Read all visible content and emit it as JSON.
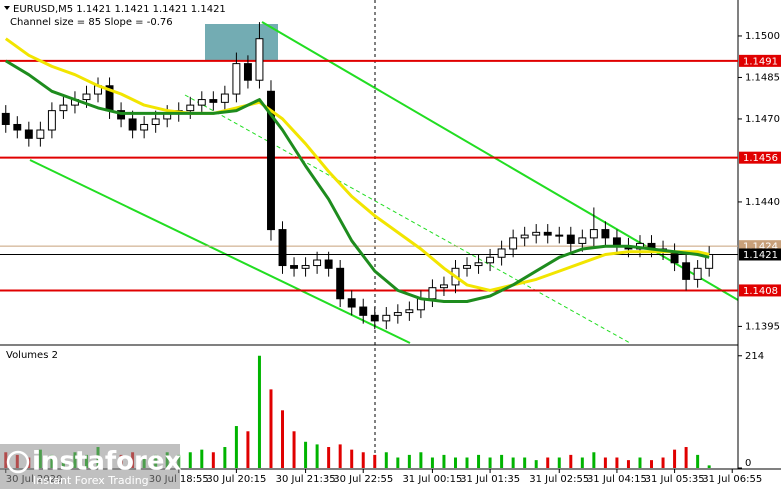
{
  "chart_data": {
    "type": "candlestick",
    "title": "EURUSD,M5  1.1421 1.1421 1.1421 1.1421",
    "subtitle": "Channel size = 85 Slope = -0.76",
    "open": [
      1.1472,
      1.1468,
      1.1466,
      1.1463,
      1.1466,
      1.1473,
      1.1475,
      1.1477,
      1.1479,
      1.1482,
      1.1473,
      1.147,
      1.1466,
      1.1468,
      1.147,
      1.1472,
      1.1473,
      1.1475,
      1.1477,
      1.1476,
      1.1479,
      1.149,
      1.1484,
      1.148,
      1.143,
      1.1417,
      1.1416,
      1.1417,
      1.1419,
      1.1416,
      1.1405,
      1.1402,
      1.1399,
      1.1397,
      1.1399,
      1.14,
      1.1401,
      1.1405,
      1.1409,
      1.141,
      1.1416,
      1.1417,
      1.1418,
      1.142,
      1.1423,
      1.1427,
      1.1428,
      1.1429,
      1.1428,
      1.1428,
      1.1425,
      1.1427,
      1.143,
      1.1427,
      1.1424,
      1.1423,
      1.1425,
      1.1423,
      1.1422,
      1.1418,
      1.1412,
      1.1416
    ],
    "high": [
      1.1475,
      1.1471,
      1.1469,
      1.1469,
      1.1476,
      1.1478,
      1.148,
      1.1482,
      1.1485,
      1.1485,
      1.1476,
      1.1473,
      1.1471,
      1.1473,
      1.1475,
      1.1476,
      1.1478,
      1.148,
      1.148,
      1.1482,
      1.1494,
      1.1493,
      1.1505,
      1.1484,
      1.1433,
      1.142,
      1.142,
      1.1422,
      1.1422,
      1.1419,
      1.1408,
      1.1405,
      1.1402,
      1.1402,
      1.1403,
      1.1404,
      1.1408,
      1.1412,
      1.1413,
      1.1419,
      1.142,
      1.1421,
      1.1423,
      1.1426,
      1.143,
      1.1431,
      1.1432,
      1.1432,
      1.1431,
      1.1431,
      1.143,
      1.1438,
      1.1433,
      1.143,
      1.1427,
      1.1428,
      1.1428,
      1.1426,
      1.1425,
      1.1421,
      1.1419,
      1.1424
    ],
    "low": [
      1.1465,
      1.1463,
      1.146,
      1.146,
      1.1463,
      1.147,
      1.1472,
      1.1474,
      1.1476,
      1.147,
      1.1467,
      1.1463,
      1.1463,
      1.1465,
      1.1467,
      1.1469,
      1.147,
      1.1472,
      1.1473,
      1.1473,
      1.1476,
      1.1481,
      1.1481,
      1.1426,
      1.1414,
      1.1413,
      1.1413,
      1.1414,
      1.1413,
      1.1402,
      1.1399,
      1.1396,
      1.1394,
      1.1394,
      1.1396,
      1.1397,
      1.1398,
      1.1402,
      1.1406,
      1.1407,
      1.1413,
      1.1414,
      1.1415,
      1.1417,
      1.142,
      1.1424,
      1.1425,
      1.1425,
      1.1425,
      1.1422,
      1.1422,
      1.1424,
      1.1424,
      1.1421,
      1.142,
      1.142,
      1.142,
      1.1419,
      1.1415,
      1.1408,
      1.1409,
      1.1413
    ],
    "close": [
      1.1468,
      1.1466,
      1.1463,
      1.1466,
      1.1473,
      1.1475,
      1.1477,
      1.1479,
      1.1482,
      1.1473,
      1.147,
      1.1466,
      1.1468,
      1.147,
      1.1472,
      1.1473,
      1.1475,
      1.1477,
      1.1476,
      1.1479,
      1.149,
      1.1484,
      1.1499,
      1.143,
      1.1417,
      1.1416,
      1.1417,
      1.1419,
      1.1416,
      1.1405,
      1.1402,
      1.1399,
      1.1397,
      1.1399,
      1.14,
      1.1401,
      1.1405,
      1.1409,
      1.141,
      1.1416,
      1.1417,
      1.1418,
      1.142,
      1.1423,
      1.1427,
      1.1428,
      1.1429,
      1.1428,
      1.1428,
      1.1425,
      1.1427,
      1.143,
      1.1427,
      1.1424,
      1.1423,
      1.1425,
      1.1423,
      1.1422,
      1.1418,
      1.1412,
      1.1416,
      1.1421
    ],
    "ylim": [
      1.1389,
      1.1513
    ],
    "yticks": [
      {
        "value": 1.15,
        "label": "1.1500"
      },
      1.1485,
      {
        "value": 1.147,
        "label": "1.1470"
      },
      {
        "value": 1.144,
        "label": "1.1440"
      },
      1.1395
    ],
    "xlim": [
      0,
      64
    ],
    "xticks": [
      {
        "value": 0,
        "label": "30 Jul 2020"
      },
      {
        "value": 15,
        "label": "30 Jul 18:55"
      },
      {
        "value": 20,
        "label": "30 Jul 20:15"
      },
      {
        "value": 26,
        "label": "30 Jul 21:35"
      },
      {
        "value": 31,
        "label": "30 Jul 22:55"
      },
      {
        "value": 37,
        "label": "31 Jul 00:15"
      },
      {
        "value": 42,
        "label": "31 Jul 01:35"
      },
      {
        "value": 48,
        "label": "31 Jul 02:55"
      },
      {
        "value": 53,
        "label": "31 Jul 04:15"
      },
      {
        "value": 58,
        "label": "31 Jul 05:35"
      },
      {
        "value": 63,
        "label": "31 Jul 06:55"
      }
    ],
    "lines": [
      {
        "color": "#f2e500",
        "x": [
          0,
          2,
          4,
          6,
          8,
          10,
          12,
          14,
          16,
          18,
          20,
          22,
          24,
          26,
          28,
          30,
          32,
          34,
          36,
          38,
          40,
          42,
          44,
          46,
          48,
          50,
          52,
          54,
          56,
          58,
          60,
          61
        ],
        "values": [
          1.1499,
          1.1493,
          1.1489,
          1.1486,
          1.1482,
          1.1479,
          1.1475,
          1.1473,
          1.1472,
          1.1472,
          1.1474,
          1.1476,
          1.147,
          1.1461,
          1.1451,
          1.1442,
          1.1435,
          1.1429,
          1.1423,
          1.1416,
          1.141,
          1.1408,
          1.141,
          1.1412,
          1.1415,
          1.1418,
          1.1421,
          1.1422,
          1.1422,
          1.1422,
          1.1422,
          1.1421
        ]
      },
      {
        "color": "#1e8c1e",
        "x": [
          0,
          2,
          4,
          6,
          8,
          10,
          12,
          14,
          16,
          18,
          20,
          22,
          24,
          26,
          28,
          30,
          32,
          34,
          36,
          38,
          40,
          42,
          44,
          46,
          48,
          50,
          52,
          54,
          56,
          58,
          60,
          61
        ],
        "values": [
          1.1491,
          1.1486,
          1.148,
          1.1477,
          1.1474,
          1.1472,
          1.1472,
          1.1472,
          1.1472,
          1.1472,
          1.1473,
          1.1477,
          1.1466,
          1.1453,
          1.1441,
          1.1426,
          1.1415,
          1.1408,
          1.1405,
          1.1404,
          1.1404,
          1.1406,
          1.141,
          1.1415,
          1.142,
          1.1423,
          1.1424,
          1.1424,
          1.1423,
          1.1422,
          1.1421,
          1.142
        ]
      }
    ],
    "levels": [
      {
        "value": 1.1491,
        "color": "#e00000"
      },
      {
        "value": 1.1456,
        "color": "#e00000"
      },
      {
        "value": 1.1408,
        "color": "#e00000"
      },
      {
        "value": 1.1424,
        "color": "#c8a07a"
      },
      {
        "value": 1.1421,
        "color": "#000000"
      }
    ],
    "volume": {
      "title": "Volumes 2",
      "values": [
        30,
        25,
        20,
        35,
        25,
        20,
        30,
        25,
        40,
        30,
        25,
        30,
        20,
        25,
        30,
        25,
        30,
        35,
        30,
        40,
        80,
        70,
        214,
        150,
        110,
        70,
        50,
        45,
        40,
        45,
        35,
        30,
        25,
        30,
        20,
        25,
        30,
        20,
        25,
        20,
        20,
        25,
        20,
        25,
        20,
        20,
        15,
        20,
        20,
        25,
        20,
        30,
        20,
        20,
        15,
        20,
        15,
        20,
        35,
        40,
        25,
        5
      ],
      "ylim": [
        0,
        225
      ],
      "yticks": [
        214,
        0
      ],
      "up_color": "#00b400",
      "down_color": "#e00000"
    },
    "watermark": {
      "brand": "instaforex",
      "tagline": "Instant Forex Trading"
    }
  }
}
